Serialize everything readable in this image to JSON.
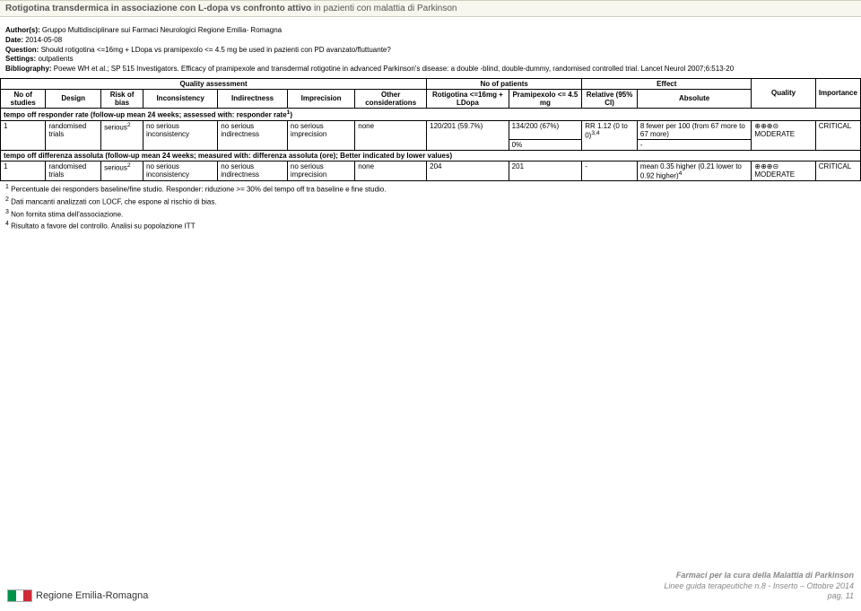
{
  "title_bold": "Rotigotina transdermica in associazione con L-dopa vs confronto attivo",
  "title_rest": " in pazienti con malattia di Parkinson",
  "meta": {
    "author_label": "Author(s):",
    "author": " Gruppo Multidisciplinare sui Farmaci Neurologici Regione Emilia- Romagna",
    "date_label": "Date:",
    "date": " 2014-05-08",
    "question_label": "Question:",
    "question": " Should rotigotina <=16mg + LDopa vs pramipexolo <= 4.5 mg be used in pazienti con PD avanzato/fluttuante?",
    "settings_label": "Settings:",
    "settings": " outpatients",
    "biblio_label": "Bibliography:",
    "biblio": " Poewe WH et al.; SP 515 Investigators. Efficacy of pramipexole and transdermal rotigotine in advanced Parkinson's disease: a double -blind, double-dummy, randomised controlled trial. Lancet Neurol 2007;6:513-20"
  },
  "headers": {
    "group_quality": "Quality assessment",
    "group_nop": "No of patients",
    "group_effect": "Effect",
    "no_studies": "No of studies",
    "design": "Design",
    "risk_bias": "Risk of bias",
    "inconsistency": "Inconsistency",
    "indirectness": "Indirectness",
    "imprecision": "Imprecision",
    "other": "Other considerations",
    "arm1": "Rotigotina <=16mg + LDopa",
    "arm2": "Pramipexolo <= 4.5 mg",
    "relative": "Relative (95% CI)",
    "absolute": "Absolute",
    "quality": "Quality",
    "importance": "Importance"
  },
  "section1": "tempo off responder rate (follow-up mean 24 weeks; assessed with: responder rate",
  "section1_sup": "1",
  "section1_close": ")",
  "row1": {
    "no": "1",
    "design": "randomised trials",
    "risk": "serious",
    "risk_sup": "2",
    "incons": "no serious inconsistency",
    "indir": "no serious indirectness",
    "imprec": "no serious imprecision",
    "other": "none",
    "arm1": "120/201 (59.7%)",
    "arm2a": "134/200 (67%)",
    "arm2b": "0%",
    "rel": "RR 1.12 (0 to 0)",
    "rel_sup": "3,4",
    "abs_a": "8 fewer per 100 (from 67 more to 67 more)",
    "abs_b": "-",
    "quality": "⊕⊕⊕⊝ MODERATE",
    "importance": "CRITICAL"
  },
  "section2": "tempo off differenza assoluta (follow-up mean 24 weeks; measured with: differenza assoluta (ore); Better indicated by lower values)",
  "row2": {
    "no": "1",
    "design": "randomised trials",
    "risk": "serious",
    "risk_sup": "2",
    "incons": "no serious inconsistency",
    "indir": "no serious indirectness",
    "imprec": "no serious imprecision",
    "other": "none",
    "arm1": "204",
    "arm2": "201",
    "rel": "-",
    "abs": "mean 0.35 higher (0.21 lower to 0.92 higher)",
    "abs_sup": "4",
    "quality": "⊕⊕⊕⊝ MODERATE",
    "importance": "CRITICAL"
  },
  "footnotes": {
    "f1": " Percentuale dei responders baseline/fine studio. Responder: riduzione >= 30% del tempo off tra baseline e fine studio.",
    "f2": " Dati mancanti analizzati con LOCF, che espone al rischio di bias.",
    "f3": " Non fornita stima dell'associazione.",
    "f4": " Risultato a favore del controllo. Analisi su popolazione ITT"
  },
  "footer": {
    "logo_text": "Regione Emilia-Romagna",
    "line1": "Farmaci per la cura della Malattia di Parkinson",
    "line2": "Linee guida terapeutiche n.8 - Inserto – Ottobre 2014",
    "line3": "pag. 11"
  }
}
